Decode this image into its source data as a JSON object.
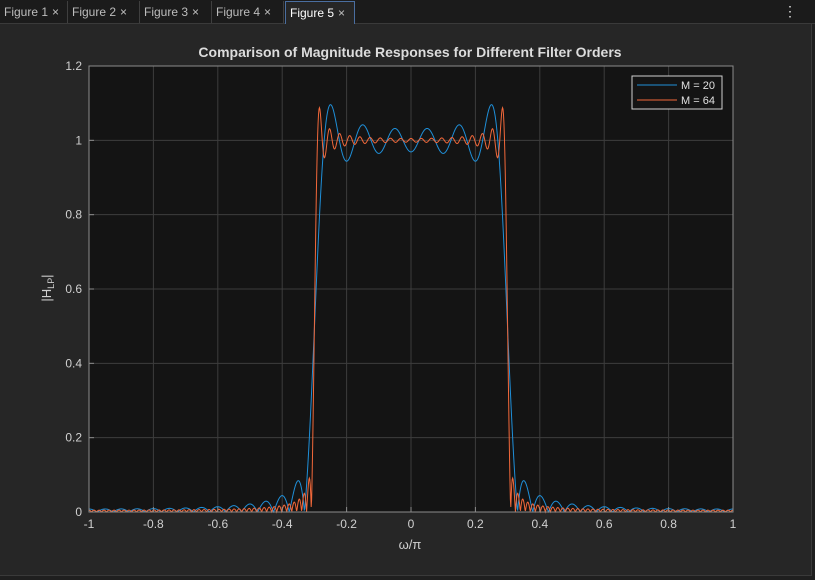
{
  "tabs": [
    {
      "label": "Figure 1",
      "active": false
    },
    {
      "label": "Figure 2",
      "active": false
    },
    {
      "label": "Figure 3",
      "active": false
    },
    {
      "label": "Figure 4",
      "active": false
    },
    {
      "label": "Figure 5",
      "active": true
    }
  ],
  "menu_glyph": "⋮",
  "close_glyph": "×",
  "colors": {
    "series1": "#1f8fd8",
    "series2": "#f2683a",
    "axes_bg": "#141414",
    "grid": "#3d3d3d"
  },
  "chart_data": {
    "type": "line",
    "title": "Comparison of Magnitude Responses for Different Filter Orders",
    "xlabel": "ω/π",
    "ylabel_main": "|H",
    "ylabel_sub": "LP",
    "ylabel_end": "|",
    "xlim": [
      -1,
      1
    ],
    "ylim": [
      0,
      1.2
    ],
    "xticks": [
      -1,
      -0.8,
      -0.6,
      -0.4,
      -0.2,
      0,
      0.2,
      0.4,
      0.6,
      0.8,
      1
    ],
    "xtick_labels": [
      "-1",
      "-0.8",
      "-0.6",
      "-0.4",
      "-0.2",
      "0",
      "0.2",
      "0.4",
      "0.6",
      "0.8",
      "1"
    ],
    "yticks": [
      0,
      0.2,
      0.4,
      0.6,
      0.8,
      1,
      1.2
    ],
    "ytick_labels": [
      "0",
      "0.2",
      "0.4",
      "0.6",
      "0.8",
      "1",
      "1.2"
    ],
    "grid": true,
    "legend_position": "top-right",
    "cutoff": 0.3,
    "series": [
      {
        "name": "M = 20",
        "order": 20,
        "color": "#1f8fd8"
      },
      {
        "name": "M = 64",
        "order": 64,
        "color": "#f2683a"
      }
    ]
  }
}
